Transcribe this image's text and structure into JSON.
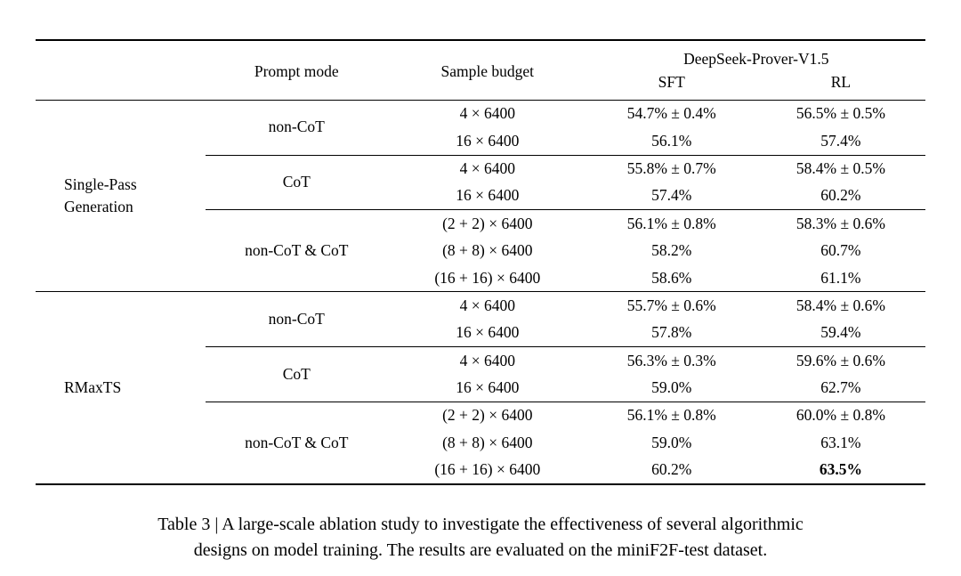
{
  "colors": {
    "background": "#ffffff",
    "text": "#000000",
    "rule": "#000000"
  },
  "table": {
    "header": {
      "prompt_mode": "Prompt mode",
      "sample_budget": "Sample budget",
      "model": "DeepSeek-Prover-V1.5",
      "sft": "SFT",
      "rl": "RL"
    },
    "groups": [
      {
        "method": "Single-Pass Generation",
        "subgroups": [
          {
            "prompt_mode": "non-CoT",
            "rows": [
              {
                "budget": "4 × 6400",
                "sft": "54.7% ± 0.4%",
                "rl": "56.5% ± 0.5%"
              },
              {
                "budget": "16 × 6400",
                "sft": "56.1%",
                "rl": "57.4%"
              }
            ]
          },
          {
            "prompt_mode": "CoT",
            "rows": [
              {
                "budget": "4 × 6400",
                "sft": "55.8% ± 0.7%",
                "rl": "58.4% ± 0.5%"
              },
              {
                "budget": "16 × 6400",
                "sft": "57.4%",
                "rl": "60.2%"
              }
            ]
          },
          {
            "prompt_mode": "non-CoT & CoT",
            "rows": [
              {
                "budget": "(2 + 2) × 6400",
                "sft": "56.1% ± 0.8%",
                "rl": "58.3% ± 0.6%"
              },
              {
                "budget": "(8 + 8) × 6400",
                "sft": "58.2%",
                "rl": "60.7%"
              },
              {
                "budget": "(16 + 16) × 6400",
                "sft": "58.6%",
                "rl": "61.1%"
              }
            ]
          }
        ]
      },
      {
        "method": "RMaxTS",
        "subgroups": [
          {
            "prompt_mode": "non-CoT",
            "rows": [
              {
                "budget": "4 × 6400",
                "sft": "55.7% ± 0.6%",
                "rl": "58.4% ± 0.6%"
              },
              {
                "budget": "16 × 6400",
                "sft": "57.8%",
                "rl": "59.4%"
              }
            ]
          },
          {
            "prompt_mode": "CoT",
            "rows": [
              {
                "budget": "4 × 6400",
                "sft": "56.3% ± 0.3%",
                "rl": "59.6% ± 0.6%"
              },
              {
                "budget": "16 × 6400",
                "sft": "59.0%",
                "rl": "62.7%"
              }
            ]
          },
          {
            "prompt_mode": "non-CoT & CoT",
            "rows": [
              {
                "budget": "(2 + 2) × 6400",
                "sft": "56.1% ± 0.8%",
                "rl": "60.0% ± 0.8%"
              },
              {
                "budget": "(8 + 8) × 6400",
                "sft": "59.0%",
                "rl": "63.1%"
              },
              {
                "budget": "(16 + 16) × 6400",
                "sft": "60.2%",
                "rl": "63.5%"
              }
            ]
          }
        ]
      }
    ]
  },
  "caption": {
    "line1": "Table 3 | A large-scale ablation study to investigate the effectiveness of several algorithmic",
    "line2": "designs on model training. The results are evaluated on the miniF2F-test dataset."
  }
}
